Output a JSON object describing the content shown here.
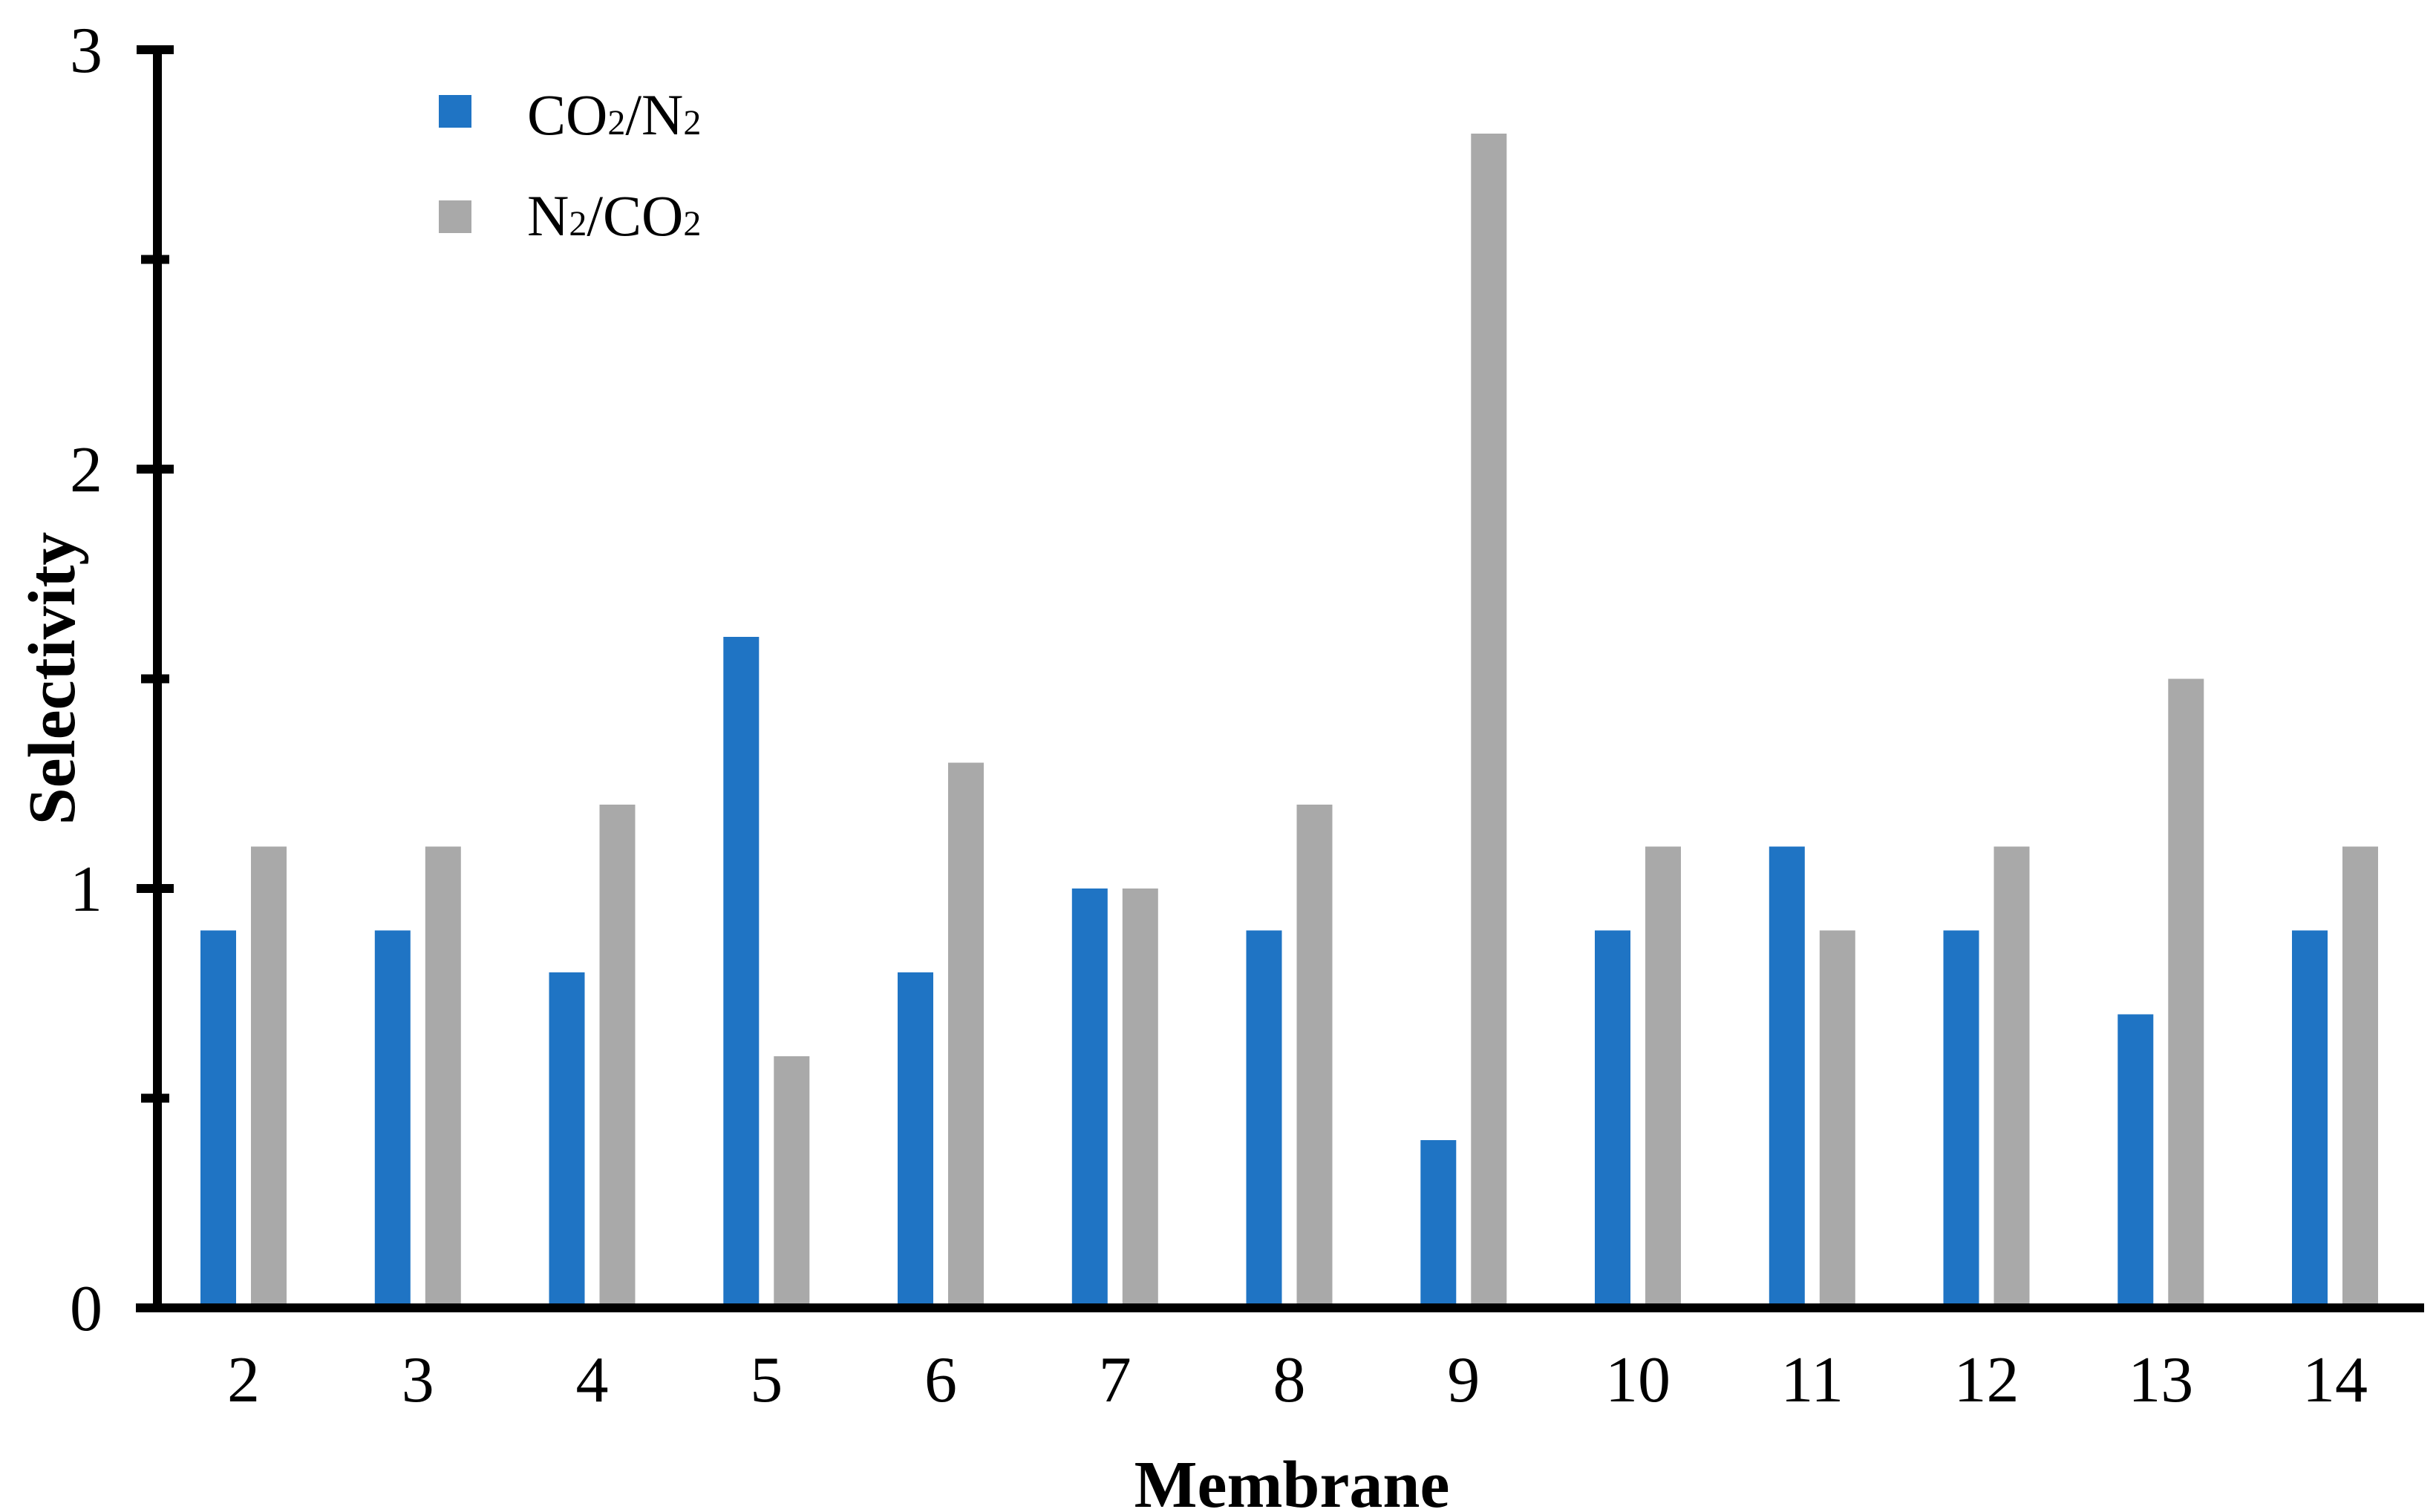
{
  "chart_data": {
    "type": "bar",
    "title": "",
    "xlabel": "Membrane",
    "ylabel": "Selectivity",
    "categories": [
      "2",
      "3",
      "4",
      "5",
      "6",
      "7",
      "8",
      "9",
      "10",
      "11",
      "12",
      "13",
      "14"
    ],
    "series": [
      {
        "name": "CO2/N2",
        "label_parts": [
          {
            "t": "CO"
          },
          {
            "t": "2",
            "sub": true
          },
          {
            "t": "/N"
          },
          {
            "t": "2",
            "sub": true
          }
        ],
        "color": "#1F74C4",
        "values": [
          0.9,
          0.9,
          0.8,
          1.6,
          0.8,
          1.0,
          0.9,
          0.4,
          0.9,
          1.1,
          0.9,
          0.7,
          0.9
        ]
      },
      {
        "name": "N2/CO2",
        "label_parts": [
          {
            "t": "N"
          },
          {
            "t": "2",
            "sub": true
          },
          {
            "t": "/CO"
          },
          {
            "t": "2",
            "sub": true
          }
        ],
        "color": "#A9A9A9",
        "values": [
          1.1,
          1.1,
          1.2,
          0.6,
          1.3,
          1.0,
          1.2,
          2.8,
          1.1,
          0.9,
          1.1,
          1.5,
          1.1
        ]
      }
    ],
    "ylim": [
      0,
      3
    ],
    "yticks": [
      0,
      1,
      2,
      3
    ],
    "ytick_labels": [
      "0",
      "1",
      "2",
      "3"
    ],
    "minor_yticks": [
      0.5,
      1.5,
      2.5
    ],
    "grid": false,
    "legend_position": "top-left",
    "axis_color": "#000000",
    "background_color": "#FFFFFF"
  }
}
